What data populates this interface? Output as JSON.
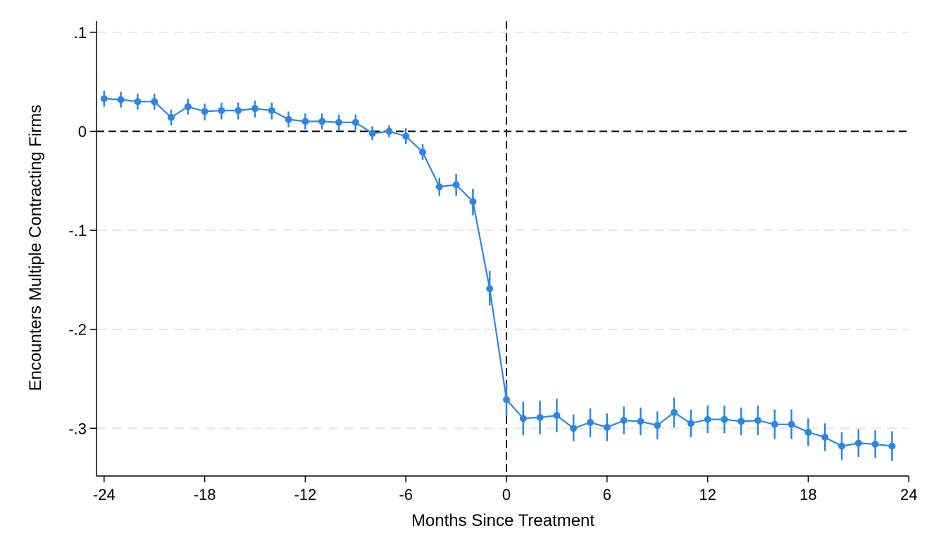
{
  "chart_data": {
    "type": "line",
    "title": "",
    "xlabel": "Months Since Treatment",
    "ylabel": "Encounters Multiple Contracting Firms",
    "xlim": [
      -24.5,
      24
    ],
    "ylim": [
      -0.345,
      0.11
    ],
    "xticks": [
      -24,
      -18,
      -12,
      -6,
      0,
      6,
      12,
      18,
      24
    ],
    "xtick_labels": [
      "-24",
      "-18",
      "-12",
      "-6",
      "0",
      "6",
      "12",
      "18",
      "24"
    ],
    "yticks": [
      0.1,
      0,
      -0.1,
      -0.2,
      -0.3
    ],
    "ytick_labels": [
      ".1",
      "0",
      "-.1",
      "-.2",
      "-.3"
    ],
    "grid": "horizontal dashed",
    "reference_lines": {
      "x": 0,
      "y": 0,
      "style": "dashed"
    },
    "series_color": "#2a86e6",
    "series": [
      {
        "x": [
          -24,
          -23,
          -22,
          -21,
          -20,
          -19,
          -18,
          -17,
          -16,
          -15,
          -14,
          -13,
          -12,
          -11,
          -10,
          -9,
          -8,
          -7,
          -6,
          -5,
          -4,
          -3,
          -2,
          -1,
          0,
          1,
          2,
          3,
          4,
          5,
          6,
          7,
          8,
          9,
          10,
          11,
          12,
          13,
          14,
          15,
          16,
          17,
          18,
          19,
          20,
          21,
          22,
          23
        ],
        "y": [
          0.033,
          0.032,
          0.03,
          0.03,
          0.014,
          0.025,
          0.02,
          0.021,
          0.021,
          0.023,
          0.021,
          0.012,
          0.01,
          0.01,
          0.009,
          0.009,
          -0.002,
          0.0,
          -0.005,
          -0.021,
          -0.056,
          -0.054,
          -0.071,
          -0.159,
          -0.271,
          -0.29,
          -0.289,
          -0.287,
          -0.3,
          -0.294,
          -0.299,
          -0.292,
          -0.293,
          -0.297,
          -0.284,
          -0.295,
          -0.291,
          -0.291,
          -0.293,
          -0.292,
          -0.296,
          -0.296,
          -0.304,
          -0.309,
          -0.318,
          -0.315,
          -0.316,
          -0.318
        ],
        "ci_low": [
          0.025,
          0.024,
          0.022,
          0.022,
          0.006,
          0.017,
          0.011,
          0.012,
          0.012,
          0.014,
          0.012,
          0.004,
          0.002,
          0.002,
          0.001,
          0.001,
          -0.009,
          -0.006,
          -0.013,
          -0.029,
          -0.065,
          -0.065,
          -0.085,
          -0.176,
          -0.288,
          -0.307,
          -0.306,
          -0.304,
          -0.313,
          -0.309,
          -0.313,
          -0.306,
          -0.307,
          -0.311,
          -0.299,
          -0.309,
          -0.305,
          -0.305,
          -0.307,
          -0.307,
          -0.311,
          -0.311,
          -0.318,
          -0.323,
          -0.332,
          -0.329,
          -0.33,
          -0.333
        ],
        "ci_high": [
          0.041,
          0.04,
          0.038,
          0.038,
          0.022,
          0.033,
          0.028,
          0.029,
          0.029,
          0.031,
          0.029,
          0.02,
          0.018,
          0.018,
          0.017,
          0.017,
          0.005,
          0.006,
          0.003,
          -0.013,
          -0.047,
          -0.043,
          -0.058,
          -0.141,
          -0.254,
          -0.273,
          -0.272,
          -0.27,
          -0.286,
          -0.28,
          -0.285,
          -0.278,
          -0.279,
          -0.283,
          -0.269,
          -0.281,
          -0.277,
          -0.277,
          -0.279,
          -0.277,
          -0.281,
          -0.281,
          -0.29,
          -0.295,
          -0.304,
          -0.301,
          -0.302,
          -0.303
        ]
      }
    ]
  }
}
